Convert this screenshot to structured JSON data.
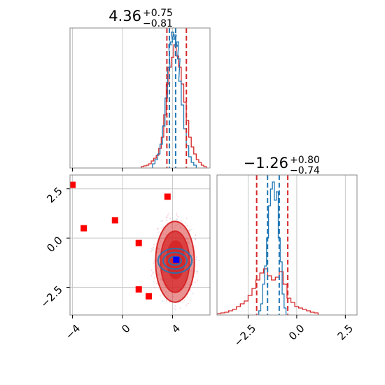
{
  "chart_data": {
    "type": "corner",
    "colors": {
      "red": "#d62728",
      "blue": "#1f77b4",
      "marker_red": "#ff0000",
      "marker_blue": "#0000ff",
      "grid": "#c8c8c8",
      "frame": "#888888"
    },
    "panels": [
      {
        "id": "top-left",
        "type": "histogram",
        "title": {
          "value": "4.36",
          "plus": "+0.75",
          "minus": "−0.81"
        },
        "xlim": [
          -4.2,
          7.0
        ],
        "ylim": [
          0,
          1
        ],
        "grid_x": [
          -4,
          0,
          4
        ],
        "show_x_ticklabels": false,
        "red_quantiles": [
          3.55,
          5.11
        ],
        "blue_quantiles": [
          3.75,
          4.25
        ],
        "series": [
          {
            "name": "",
            "color": "#d62728",
            "bins": [
              [
                1.6,
                0.01
              ],
              [
                1.8,
                0.015
              ],
              [
                2.0,
                0.02
              ],
              [
                2.2,
                0.03
              ],
              [
                2.4,
                0.05
              ],
              [
                2.6,
                0.07
              ],
              [
                2.8,
                0.09
              ],
              [
                3.0,
                0.14
              ],
              [
                3.2,
                0.22
              ],
              [
                3.4,
                0.38
              ],
              [
                3.6,
                0.6
              ],
              [
                3.8,
                0.72
              ],
              [
                4.0,
                0.79
              ],
              [
                4.2,
                0.88
              ],
              [
                4.4,
                0.8
              ],
              [
                4.6,
                0.72
              ],
              [
                4.8,
                0.6
              ],
              [
                5.0,
                0.47
              ],
              [
                5.2,
                0.34
              ],
              [
                5.4,
                0.22
              ],
              [
                5.6,
                0.15
              ],
              [
                5.8,
                0.1
              ],
              [
                6.0,
                0.06
              ],
              [
                6.2,
                0.04
              ],
              [
                6.4,
                0.02
              ],
              [
                6.6,
                0.01
              ]
            ]
          },
          {
            "name": "",
            "color": "#1f77b4",
            "bins": [
              [
                2.5,
                0.03
              ],
              [
                2.7,
                0.06
              ],
              [
                2.9,
                0.1
              ],
              [
                3.1,
                0.17
              ],
              [
                3.3,
                0.3
              ],
              [
                3.5,
                0.5
              ],
              [
                3.7,
                0.72
              ],
              [
                3.8,
                0.88
              ],
              [
                3.9,
                0.9
              ],
              [
                4.0,
                0.97
              ],
              [
                4.1,
                0.92
              ],
              [
                4.2,
                0.95
              ],
              [
                4.3,
                0.87
              ],
              [
                4.4,
                0.9
              ],
              [
                4.5,
                0.78
              ],
              [
                4.6,
                0.62
              ],
              [
                4.8,
                0.45
              ],
              [
                5.0,
                0.28
              ],
              [
                5.2,
                0.16
              ],
              [
                5.4,
                0.08
              ],
              [
                5.6,
                0.04
              ],
              [
                5.8,
                0.02
              ]
            ]
          }
        ]
      },
      {
        "id": "bottom-right",
        "type": "histogram",
        "title": {
          "value": "−1.26",
          "plus": "+0.80",
          "minus": "−0.74"
        },
        "xlim": [
          -4.1,
          3.1
        ],
        "ylim": [
          0,
          1
        ],
        "grid_x": [
          -2.5,
          0.0,
          2.5
        ],
        "x_ticks": [
          -2.5,
          0.0,
          2.5
        ],
        "x_ticklabels": [
          "−2.5",
          "0.0",
          "2.5"
        ],
        "red_quantiles": [
          -2.06,
          -0.46
        ],
        "blue_quantiles": [
          -1.5,
          -0.9
        ],
        "series": [
          {
            "name": "",
            "color": "#d62728",
            "bins": [
              [
                -4.0,
                0.01
              ],
              [
                -3.8,
                0.015
              ],
              [
                -3.6,
                0.02
              ],
              [
                -3.4,
                0.03
              ],
              [
                -3.2,
                0.04
              ],
              [
                -3.0,
                0.06
              ],
              [
                -2.8,
                0.08
              ],
              [
                -2.6,
                0.1
              ],
              [
                -2.4,
                0.14
              ],
              [
                -2.2,
                0.19
              ],
              [
                -2.0,
                0.25
              ],
              [
                -1.8,
                0.3
              ],
              [
                -1.6,
                0.33
              ],
              [
                -1.4,
                0.28
              ],
              [
                -1.2,
                0.25
              ],
              [
                -1.0,
                0.27
              ],
              [
                -0.8,
                0.31
              ],
              [
                -0.6,
                0.22
              ],
              [
                -0.4,
                0.12
              ],
              [
                -0.2,
                0.09
              ],
              [
                0.0,
                0.06
              ],
              [
                0.2,
                0.05
              ],
              [
                0.4,
                0.04
              ],
              [
                0.6,
                0.03
              ],
              [
                0.8,
                0.02
              ],
              [
                1.0,
                0.015
              ]
            ]
          },
          {
            "name": "",
            "color": "#1f77b4",
            "bins": [
              [
                -1.9,
                0.03
              ],
              [
                -1.8,
                0.08
              ],
              [
                -1.7,
                0.22
              ],
              [
                -1.6,
                0.35
              ],
              [
                -1.5,
                0.55
              ],
              [
                -1.4,
                0.78
              ],
              [
                -1.3,
                0.9
              ],
              [
                -1.2,
                0.95
              ],
              [
                -1.1,
                0.82
              ],
              [
                -1.0,
                0.88
              ],
              [
                -0.9,
                0.55
              ],
              [
                -0.8,
                0.38
              ],
              [
                -0.7,
                0.15
              ],
              [
                -0.6,
                0.05
              ]
            ]
          }
        ]
      },
      {
        "id": "bottom-left",
        "type": "scatter_contour",
        "xlim": [
          -4.2,
          7.0
        ],
        "ylim": [
          -3.9,
          3.2
        ],
        "grid_x": [
          -4,
          0,
          4
        ],
        "grid_y": [
          -2.5,
          0.0,
          2.5
        ],
        "x_ticks": [
          -4,
          0,
          4
        ],
        "x_ticklabels": [
          "−4",
          "0",
          "4"
        ],
        "y_ticks": [
          -2.5,
          0.0,
          2.5
        ],
        "y_ticklabels": [
          "−2.5",
          "0.0",
          "2.5"
        ],
        "red_squares": [
          [
            -4.0,
            2.7
          ],
          [
            -3.1,
            0.5
          ],
          [
            -0.6,
            0.9
          ],
          [
            1.3,
            -0.25
          ],
          [
            3.6,
            2.1
          ],
          [
            1.3,
            -2.6
          ],
          [
            2.1,
            -2.95
          ]
        ],
        "blue_square": [
          4.3,
          -1.1
        ],
        "red_contours": [
          {
            "center": [
              4.2,
              -1.2
            ],
            "rx": 1.55,
            "ry": 2.05,
            "opacity": 0.5
          },
          {
            "center": [
              4.2,
              -1.2
            ],
            "rx": 1.15,
            "ry": 1.55,
            "opacity": 0.75
          },
          {
            "center": [
              4.25,
              -1.1
            ],
            "rx": 0.7,
            "ry": 0.95,
            "opacity": 0.95
          }
        ],
        "blue_contours": [
          {
            "center": [
              4.2,
              -1.15
            ],
            "rx": 1.35,
            "ry": 0.62
          },
          {
            "center": [
              4.2,
              -1.15
            ],
            "rx": 0.95,
            "ry": 0.42
          },
          {
            "center": [
              4.2,
              -1.15
            ],
            "rx": 0.5,
            "ry": 0.22
          }
        ]
      }
    ]
  }
}
